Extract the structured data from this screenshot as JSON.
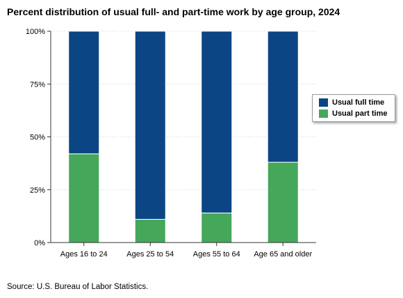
{
  "title": "Percent distribution of usual full- and part-time work by age group, 2024",
  "source": "Source: U.S. Bureau of Labor Statistics.",
  "colors": {
    "full_time": "#0b4584",
    "part_time": "#45a75a",
    "grid": "#c8c8c8",
    "axis": "#333333"
  },
  "chart_data": {
    "type": "bar",
    "stacked": true,
    "categories": [
      "Ages 16 to 24",
      "Ages 25 to 54",
      "Ages 55 to 64",
      "Age 65 and older"
    ],
    "series": [
      {
        "name": "Usual part time",
        "values": [
          42,
          11,
          14,
          38
        ]
      },
      {
        "name": "Usual full time",
        "values": [
          58,
          89,
          86,
          62
        ]
      }
    ],
    "ylim": [
      0,
      100
    ],
    "yticks": [
      "0%",
      "25%",
      "50%",
      "75%",
      "100%"
    ],
    "grid": true,
    "legend": "right"
  }
}
